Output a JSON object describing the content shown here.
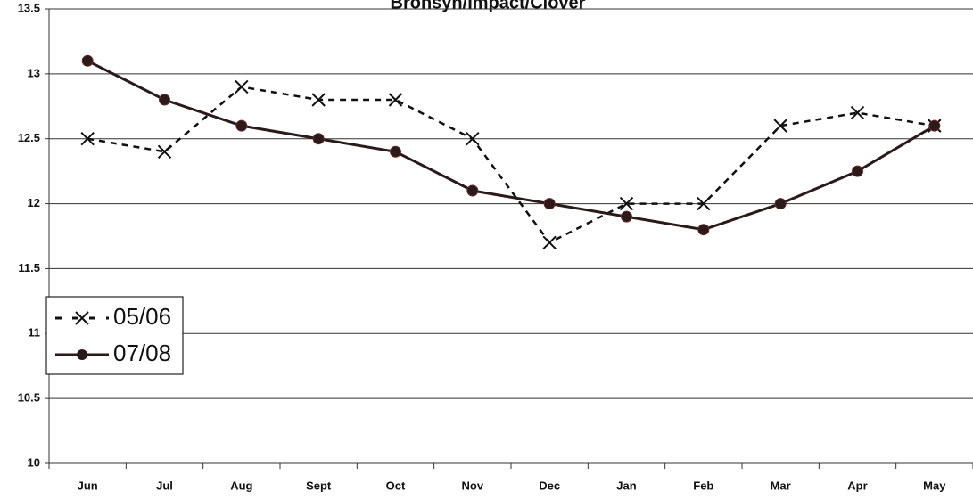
{
  "chart_data": {
    "type": "line",
    "title": "Bronsyn/Impact/Clover",
    "categories": [
      "Jun",
      "Jul",
      "Aug",
      "Sept",
      "Oct",
      "Nov",
      "Dec",
      "Jan",
      "Feb",
      "Mar",
      "Apr",
      "May"
    ],
    "series": [
      {
        "name": "05/06",
        "color": "#111111",
        "dashed": true,
        "marker": "x",
        "values": [
          12.5,
          12.4,
          12.9,
          12.8,
          12.8,
          12.5,
          11.7,
          12.0,
          12.0,
          12.6,
          12.7,
          12.6
        ]
      },
      {
        "name": "07/08",
        "color": "#2a1a1a",
        "dashed": false,
        "marker": "circle",
        "values": [
          13.1,
          12.8,
          12.6,
          12.5,
          12.4,
          12.1,
          12.0,
          11.9,
          11.8,
          12.0,
          12.25,
          12.6
        ]
      }
    ],
    "ylim": [
      10,
      13.5
    ],
    "yticks": [
      10,
      10.5,
      11,
      11.5,
      12,
      12.5,
      13,
      13.5
    ],
    "grid": true
  }
}
